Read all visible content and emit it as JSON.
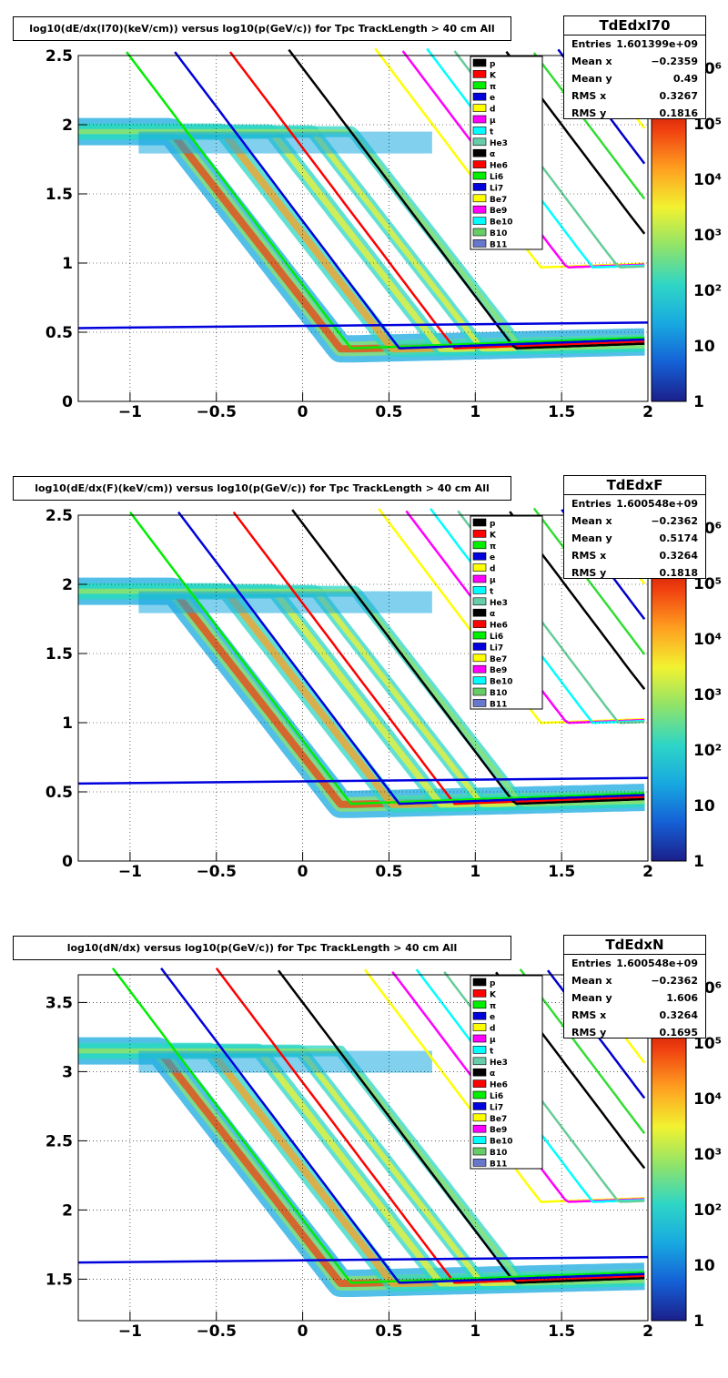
{
  "colors": {
    "palette": [
      "#1b1f8a",
      "#1560d6",
      "#18a9e0",
      "#2ed6c6",
      "#8fe36a",
      "#f2f230",
      "#ffa020",
      "#f04010",
      "#b00000"
    ]
  },
  "chart_data": [
    {
      "type": "heatmap",
      "title": "log10(dE/dx(I70)(keV/cm)) versus log10(p(GeV/c)) for Tpc TrackLength > 40 cm All",
      "stats": {
        "name": "TdEdxI70",
        "rows": [
          {
            "label": "Entries",
            "value": "1.601399e+09"
          },
          {
            "label": "Mean x",
            "value": "−0.2359"
          },
          {
            "label": "Mean y",
            "value": "0.49"
          },
          {
            "label": "RMS x",
            "value": "0.3267"
          },
          {
            "label": "RMS y",
            "value": "0.1816"
          }
        ]
      },
      "xlim": [
        -1.3,
        2.0
      ],
      "ylim": [
        0,
        2.5
      ],
      "xticks": [
        "−1",
        "−0.5",
        "0",
        "0.5",
        "1",
        "1.5",
        "2"
      ],
      "yticks": [
        "0",
        "0.5",
        "1",
        "1.5",
        "2",
        "2.5"
      ],
      "ytick_values": [
        0,
        0.5,
        1,
        1.5,
        2,
        2.5
      ],
      "zticks": [
        "1",
        "10",
        "10²",
        "10³",
        "10⁴",
        "10⁵",
        "10⁶"
      ],
      "zlog": true,
      "y0": 0.0,
      "legend_position": "top-right",
      "legend": [
        "p",
        "K",
        "π",
        "e",
        "d",
        "μ",
        "t",
        "He3",
        "α",
        "He6",
        "Li6",
        "Li7",
        "Be7",
        "Be9",
        "Be10",
        "B10",
        "B11"
      ]
    },
    {
      "type": "heatmap",
      "title": "log10(dE/dx(F)(keV/cm)) versus log10(p(GeV/c)) for Tpc TrackLength > 40 cm All",
      "stats": {
        "name": "TdEdxF",
        "rows": [
          {
            "label": "Entries",
            "value": "1.600548e+09"
          },
          {
            "label": "Mean x",
            "value": "−0.2362"
          },
          {
            "label": "Mean y",
            "value": "0.5174"
          },
          {
            "label": "RMS x",
            "value": "0.3264"
          },
          {
            "label": "RMS y",
            "value": "0.1818"
          }
        ]
      },
      "xlim": [
        -1.3,
        2.0
      ],
      "ylim": [
        0,
        2.5
      ],
      "xticks": [
        "−1",
        "−0.5",
        "0",
        "0.5",
        "1",
        "1.5",
        "2"
      ],
      "yticks": [
        "0",
        "0.5",
        "1",
        "1.5",
        "2",
        "2.5"
      ],
      "ytick_values": [
        0,
        0.5,
        1,
        1.5,
        2,
        2.5
      ],
      "zticks": [
        "1",
        "10",
        "10²",
        "10³",
        "10⁴",
        "10⁵",
        "10⁶"
      ],
      "zlog": true,
      "y0": 0.03,
      "legend_position": "top-right",
      "legend": [
        "p",
        "K",
        "π",
        "e",
        "d",
        "μ",
        "t",
        "He3",
        "α",
        "He6",
        "Li6",
        "Li7",
        "Be7",
        "Be9",
        "Be10",
        "B10",
        "B11"
      ]
    },
    {
      "type": "heatmap",
      "title": "log10(dN/dx) versus log10(p(GeV/c)) for Tpc TrackLength > 40 cm All",
      "stats": {
        "name": "TdEdxN",
        "rows": [
          {
            "label": "Entries",
            "value": "1.600548e+09"
          },
          {
            "label": "Mean x",
            "value": "−0.2362"
          },
          {
            "label": "Mean y",
            "value": "1.606"
          },
          {
            "label": "RMS x",
            "value": "0.3264"
          },
          {
            "label": "RMS y",
            "value": "0.1695"
          }
        ]
      },
      "xlim": [
        -1.3,
        2.0
      ],
      "ylim": [
        1.2,
        3.7
      ],
      "xticks": [
        "−1",
        "−0.5",
        "0",
        "0.5",
        "1",
        "1.5",
        "2"
      ],
      "yticks": [
        "1.5",
        "2",
        "2.5",
        "3",
        "3.5"
      ],
      "ytick_values": [
        1.5,
        2,
        2.5,
        3,
        3.5
      ],
      "zticks": [
        "1",
        "10",
        "10²",
        "10³",
        "10⁴",
        "10⁵",
        "10⁶"
      ],
      "zlog": true,
      "y0": 1.12,
      "legend_position": "top-right",
      "legend": [
        "p",
        "K",
        "π",
        "e",
        "d",
        "μ",
        "t",
        "He3",
        "α",
        "He6",
        "Li6",
        "Li7",
        "Be7",
        "Be9",
        "Be10",
        "B10",
        "B11"
      ]
    }
  ]
}
